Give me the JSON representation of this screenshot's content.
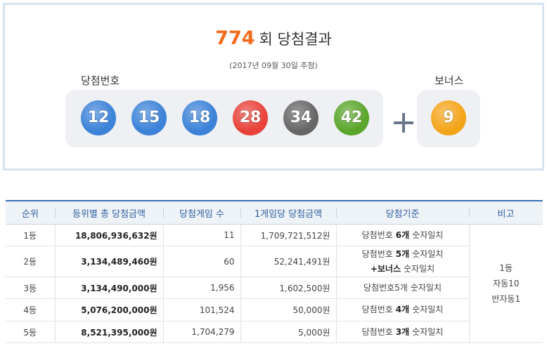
{
  "header": {
    "round": "774",
    "title": "회 당첨결과",
    "date": "(2017년 09월 30일 추첨)"
  },
  "winning": {
    "label": "당첨번호",
    "numbers": [
      {
        "value": 12,
        "color": "#3b82d8"
      },
      {
        "value": 15,
        "color": "#3b82d8"
      },
      {
        "value": 18,
        "color": "#3b82d8"
      },
      {
        "value": 28,
        "color": "#e8423a"
      },
      {
        "value": 34,
        "color": "#666666"
      },
      {
        "value": 42,
        "color": "#5aa62a"
      }
    ]
  },
  "bonus": {
    "label": "보너스",
    "number": {
      "value": 9,
      "color": "#f4a418"
    }
  },
  "table": {
    "columns": [
      "순위",
      "등위별 총 당첨금액",
      "당첨게임 수",
      "1게임당 당첨금액",
      "당첨기준",
      "비고"
    ],
    "rows": [
      {
        "rank": "1등",
        "total": "18,806,936,632원",
        "winners": "11",
        "per_game": "1,709,721,512원",
        "criteria": [
          [
            {
              "text": "당첨번호"
            },
            {
              "text": "6개",
              "strong": true
            },
            {
              "text": "숫자일치"
            }
          ]
        ]
      },
      {
        "rank": "2등",
        "total": "3,134,489,460원",
        "winners": "60",
        "per_game": "52,241,491원",
        "criteria": [
          [
            {
              "text": "당첨번호"
            },
            {
              "text": "5개",
              "strong": true
            },
            {
              "text": "숫자일치"
            }
          ],
          [
            {
              "text": "+보너스",
              "strong": true
            },
            {
              "text": "숫자일치"
            }
          ]
        ]
      },
      {
        "rank": "3등",
        "total": "3,134,490,000원",
        "winners": "1,956",
        "per_game": "1,602,500원",
        "criteria": [
          [
            {
              "text": "당첨번호5개"
            },
            {
              "text": "숫자일치"
            }
          ]
        ]
      },
      {
        "rank": "4등",
        "total": "5,076,200,000원",
        "winners": "101,524",
        "per_game": "50,000원",
        "criteria": [
          [
            {
              "text": "당첨번호"
            },
            {
              "text": "4개",
              "strong": true
            },
            {
              "text": "숫자일치"
            }
          ]
        ]
      },
      {
        "rank": "5등",
        "total": "8,521,395,000원",
        "winners": "1,704,279",
        "per_game": "5,000원",
        "criteria": [
          [
            {
              "text": "당첨번호"
            },
            {
              "text": "3개",
              "strong": true
            },
            {
              "text": "숫자일치"
            }
          ]
        ]
      }
    ],
    "note": [
      "1등",
      "자동10",
      "반자동1"
    ]
  }
}
